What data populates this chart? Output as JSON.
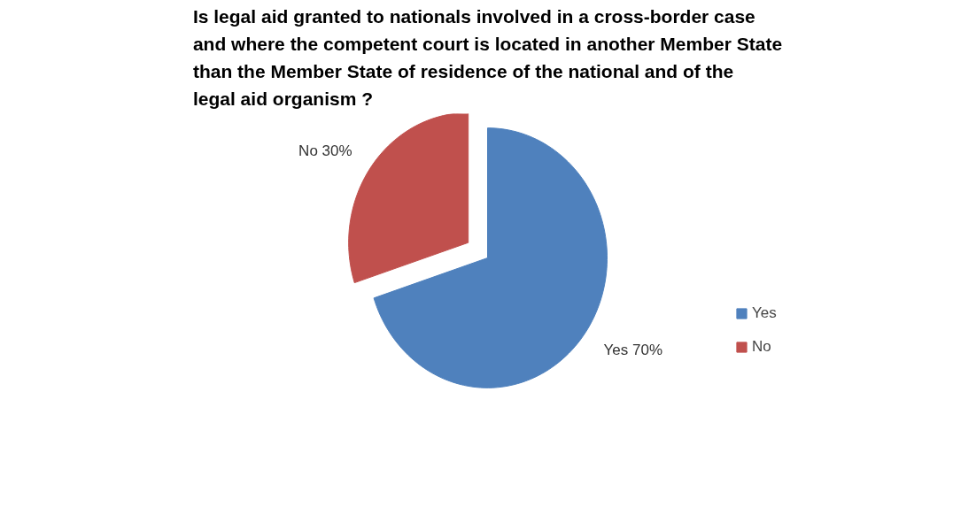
{
  "chart_data": {
    "type": "pie",
    "title": "Is legal aid granted to nationals involved in a cross-border case and where the competent court is located in another Member State than the Member State of residence of the national and of the legal aid organism ?",
    "categories": [
      "Yes",
      "No"
    ],
    "values": [
      70,
      30
    ],
    "colors": [
      "#4f81bd",
      "#c0504d"
    ],
    "value_labels": [
      "Yes 70%",
      "No 30%"
    ],
    "legend": "right"
  }
}
